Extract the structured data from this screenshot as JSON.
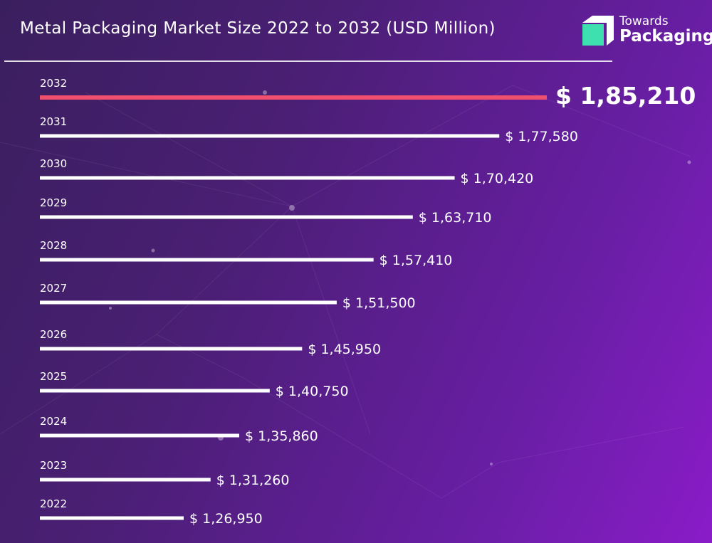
{
  "title": "Metal Packaging Market Size 2022 to 2032 (USD Million)",
  "logo": {
    "line1": "Towards",
    "line2": "Packaging",
    "icon": "packaging-box-icon",
    "accent": "#3ee0b0"
  },
  "colors": {
    "bar": "#ffffff",
    "highlight_bar": "#f0506e",
    "background_start": "#3a1f5e",
    "background_end": "#8a1cc8"
  },
  "chart_data": {
    "type": "bar",
    "orientation": "horizontal",
    "highlight_category": "2032",
    "categories": [
      "2032",
      "2031",
      "2030",
      "2029",
      "2028",
      "2027",
      "2026",
      "2025",
      "2024",
      "2023",
      "2022"
    ],
    "values": [
      185210,
      177580,
      170420,
      163710,
      157410,
      151500,
      145950,
      140750,
      135860,
      131260,
      126950
    ],
    "labels": [
      "$ 1,85,210",
      "$ 1,77,580",
      "$ 1,70,420",
      "$ 1,63,710",
      "$ 1,57,410",
      "$ 1,51,500",
      "$ 1,45,950",
      "$ 1,40,750",
      "$ 1,35,860",
      "$ 1,31,260",
      "$ 1,26,950"
    ],
    "title": "Metal Packaging Market Size 2022 to 2032 (USD Million)",
    "xlabel": "",
    "ylabel": "",
    "grid": false,
    "legend": "none"
  }
}
